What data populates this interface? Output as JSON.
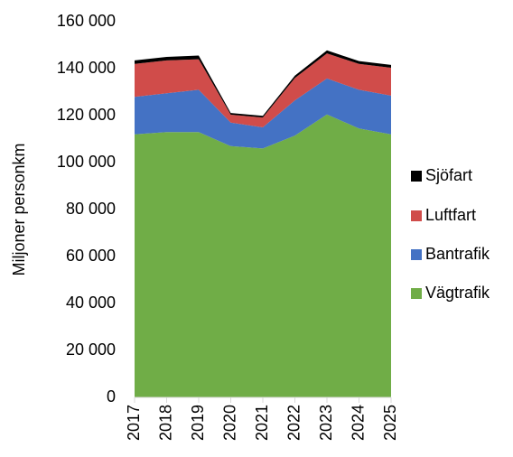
{
  "chart_data": {
    "type": "stacked_area",
    "ylabel": "Miljoner personkm",
    "categories": [
      "2017",
      "2018",
      "2019",
      "2020",
      "2021",
      "2022",
      "2023",
      "2024",
      "2025"
    ],
    "series": [
      {
        "name": "Vägtrafik",
        "color": "#70ad47",
        "values": [
          112000,
          113000,
          113000,
          107000,
          106000,
          111500,
          120500,
          114500,
          112000
        ]
      },
      {
        "name": "Bantrafik",
        "color": "#4472c4",
        "values": [
          16000,
          16500,
          18000,
          10000,
          9000,
          15000,
          15300,
          16500,
          16500
        ]
      },
      {
        "name": "Luftfart",
        "color": "#d04c4a",
        "values": [
          14000,
          14000,
          13000,
          3400,
          4200,
          9500,
          10700,
          11000,
          11900
        ]
      },
      {
        "name": "Sjöfart",
        "color": "#000000",
        "values": [
          1500,
          1500,
          1600,
          700,
          700,
          1000,
          1300,
          1200,
          1200
        ]
      }
    ],
    "ylim": [
      0,
      160000
    ],
    "yticks": [
      0,
      {
        "value": 20000,
        "label": "20 000"
      },
      {
        "value": 40000,
        "label": "40 000"
      },
      {
        "value": 60000,
        "label": "60 000"
      },
      {
        "value": 80000,
        "label": "80 000"
      },
      {
        "value": 100000,
        "label": "100 000"
      },
      {
        "value": 120000,
        "label": "120 000"
      },
      {
        "value": 140000,
        "label": "140 000"
      },
      {
        "value": 160000,
        "label": "160 000"
      }
    ],
    "legend": "right"
  }
}
